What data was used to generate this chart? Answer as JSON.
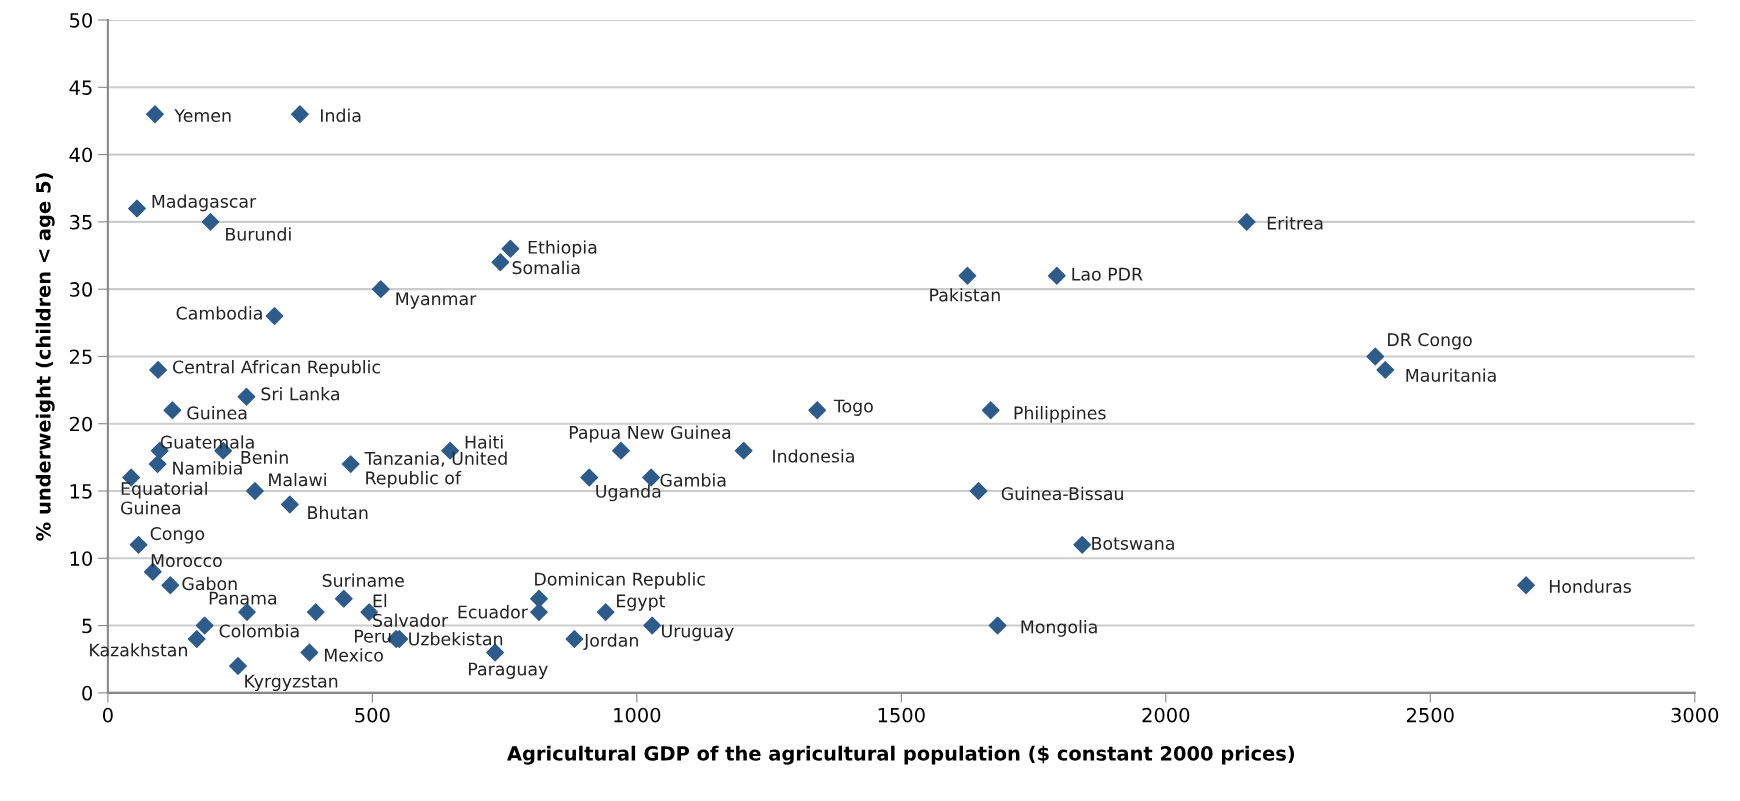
{
  "chart_data": {
    "type": "scatter",
    "xlabel": "Agricultural GDP of the agricultural population ($ constant 2000 prices)",
    "ylabel": "% underweight (children < age 5)",
    "xlim": [
      0,
      3000
    ],
    "xticks": [
      0,
      500,
      1000,
      1500,
      2000,
      2500,
      3000
    ],
    "ylim": [
      0,
      50
    ],
    "yticks": [
      0,
      5,
      10,
      15,
      20,
      25,
      30,
      35,
      40,
      45,
      50
    ],
    "grid": "y",
    "marker": "diamond",
    "series": [
      {
        "color": "#2e5c8a",
        "x": [
          89,
          363,
          55,
          194,
          761,
          742,
          516,
          315,
          95,
          262,
          122,
          98,
          218,
          94,
          44,
          278,
          344,
          459,
          647,
          58,
          85,
          118,
          263,
          183,
          168,
          246,
          381,
          446,
          494,
          545,
          551,
          732,
          815,
          815,
          941,
          882,
          1029,
          910,
          1027,
          970,
          1202,
          1341,
          1646,
          1669,
          1625,
          1794,
          2153,
          2396,
          2415,
          1842,
          1682,
          2681,
          393
        ],
        "values": [
          43,
          43,
          36,
          35,
          33,
          32,
          30,
          28,
          24,
          22,
          21,
          18,
          18,
          17,
          16,
          15,
          14,
          17,
          18,
          11,
          9,
          8,
          6,
          5,
          4,
          2,
          3,
          7,
          6,
          4,
          4,
          3,
          7,
          6,
          6,
          4,
          5,
          16,
          16,
          18,
          18,
          21,
          15,
          21,
          31,
          31,
          35,
          25,
          24,
          11,
          5,
          8,
          6
        ]
      }
    ],
    "annotations": [
      {
        "text": "Yemen",
        "x": 89,
        "y": 43
      },
      {
        "text": "India",
        "x": 363,
        "y": 43
      },
      {
        "text": "Madagascar",
        "x": 55,
        "y": 36
      },
      {
        "text": "Burundi",
        "x": 194,
        "y": 35
      },
      {
        "text": "Ethiopia",
        "x": 761,
        "y": 33
      },
      {
        "text": "Somalia",
        "x": 742,
        "y": 32
      },
      {
        "text": "Myanmar",
        "x": 516,
        "y": 30
      },
      {
        "text": "Cambodia",
        "x": 315,
        "y": 28
      },
      {
        "text": "Central African Republic",
        "x": 95,
        "y": 24
      },
      {
        "text": "Sri Lanka",
        "x": 262,
        "y": 22
      },
      {
        "text": "Guinea",
        "x": 122,
        "y": 21
      },
      {
        "text": "Guatemala",
        "x": 98,
        "y": 18
      },
      {
        "text": "Benin",
        "x": 218,
        "y": 18
      },
      {
        "text": "Namibia",
        "x": 94,
        "y": 17
      },
      {
        "text": "Equatorial\nGuinea",
        "x": 44,
        "y": 16
      },
      {
        "text": "Malawi",
        "x": 278,
        "y": 15
      },
      {
        "text": "Bhutan",
        "x": 344,
        "y": 14
      },
      {
        "text": "Tanzania, United\nRepublic of",
        "x": 459,
        "y": 17
      },
      {
        "text": "Haiti",
        "x": 647,
        "y": 18
      },
      {
        "text": "Congo",
        "x": 58,
        "y": 11
      },
      {
        "text": "Morocco",
        "x": 85,
        "y": 9
      },
      {
        "text": "Gabon",
        "x": 118,
        "y": 8
      },
      {
        "text": "Panama",
        "x": 263,
        "y": 6
      },
      {
        "text": "Colombia",
        "x": 183,
        "y": 5
      },
      {
        "text": "Kazakhstan",
        "x": 168,
        "y": 4
      },
      {
        "text": "Kyrgyzstan",
        "x": 246,
        "y": 2
      },
      {
        "text": "Mexico",
        "x": 381,
        "y": 3
      },
      {
        "text": "Suriname",
        "x": 446,
        "y": 7
      },
      {
        "text": "El\nSalvador",
        "x": 494,
        "y": 6
      },
      {
        "text": "Peru",
        "x": 545,
        "y": 4
      },
      {
        "text": "Uzbekistan",
        "x": 551,
        "y": 4
      },
      {
        "text": "Paraguay",
        "x": 732,
        "y": 3
      },
      {
        "text": "Dominican Republic",
        "x": 815,
        "y": 7
      },
      {
        "text": "Ecuador",
        "x": 815,
        "y": 6
      },
      {
        "text": "Egypt",
        "x": 941,
        "y": 6
      },
      {
        "text": "Jordan",
        "x": 882,
        "y": 4
      },
      {
        "text": "Uruguay",
        "x": 1029,
        "y": 5
      },
      {
        "text": "Uganda",
        "x": 910,
        "y": 16
      },
      {
        "text": "Gambia",
        "x": 1027,
        "y": 16
      },
      {
        "text": "Papua New Guinea",
        "x": 970,
        "y": 18
      },
      {
        "text": "Indonesia",
        "x": 1202,
        "y": 18
      },
      {
        "text": "Togo",
        "x": 1341,
        "y": 21
      },
      {
        "text": "Guinea-Bissau",
        "x": 1646,
        "y": 15
      },
      {
        "text": "Philippines",
        "x": 1669,
        "y": 21
      },
      {
        "text": "Pakistan",
        "x": 1625,
        "y": 31
      },
      {
        "text": "Lao PDR",
        "x": 1794,
        "y": 31
      },
      {
        "text": "Eritrea",
        "x": 2153,
        "y": 35
      },
      {
        "text": "DR Congo",
        "x": 2396,
        "y": 25
      },
      {
        "text": "Mauritania",
        "x": 2415,
        "y": 24
      },
      {
        "text": "Botswana",
        "x": 1842,
        "y": 11
      },
      {
        "text": "Mongolia",
        "x": 1682,
        "y": 5
      },
      {
        "text": "Honduras",
        "x": 2681,
        "y": 8
      }
    ]
  }
}
